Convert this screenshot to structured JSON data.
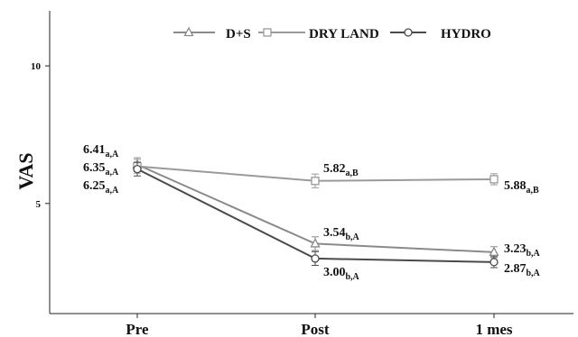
{
  "chart_data": {
    "type": "line",
    "ylabel": "VAS",
    "categories": [
      "Pre",
      "Post",
      "1 mes"
    ],
    "y_ticks": [
      "5",
      "10"
    ],
    "ylim": [
      1,
      12
    ],
    "grid": false,
    "legend_position": "top",
    "series": [
      {
        "name": "D+S",
        "marker": "triangle",
        "color": "#8a8a8a",
        "values": [
          6.41,
          3.54,
          3.23
        ],
        "errors": [
          0.25,
          0.25,
          0.2
        ],
        "labels": [
          {
            "value": "6.41",
            "sub": "a,A"
          },
          {
            "value": "3.54",
            "sub": "b,A"
          },
          {
            "value": "3.23",
            "sub": "b,A"
          }
        ]
      },
      {
        "name": "DRY LAND",
        "marker": "square",
        "color": "#9a9a9a",
        "values": [
          6.35,
          5.82,
          5.88
        ],
        "errors": [
          0.25,
          0.25,
          0.2
        ],
        "labels": [
          {
            "value": "6.35",
            "sub": "a,A"
          },
          {
            "value": "5.82",
            "sub": "a,B"
          },
          {
            "value": "5.88",
            "sub": "a,B"
          }
        ]
      },
      {
        "name": "HYDRO",
        "marker": "circle",
        "color": "#4a4a4a",
        "values": [
          6.25,
          3.0,
          2.87
        ],
        "errors": [
          0.25,
          0.25,
          0.2
        ],
        "labels": [
          {
            "value": "6.25",
            "sub": "a,A"
          },
          {
            "value": "3.00",
            "sub": "b,A"
          },
          {
            "value": "2.87",
            "sub": "b,A"
          }
        ]
      }
    ]
  }
}
